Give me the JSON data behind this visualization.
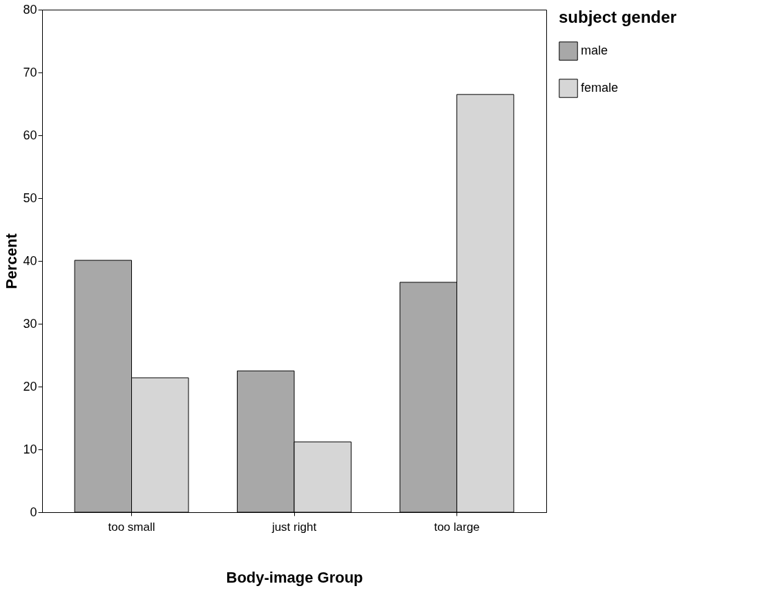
{
  "chart_data": {
    "type": "bar",
    "xlabel": "Body-image Group",
    "ylabel": "Percent",
    "legend_title": "subject gender",
    "categories": [
      "too small",
      "just right",
      "too large"
    ],
    "series": [
      {
        "name": "male",
        "color": "#a8a8a8",
        "values": [
          40.1,
          22.5,
          36.6
        ]
      },
      {
        "name": "female",
        "color": "#d6d6d6",
        "values": [
          21.4,
          11.2,
          66.5
        ]
      }
    ],
    "ylim": [
      0,
      80
    ],
    "yticks": [
      0,
      10,
      20,
      30,
      40,
      50,
      60,
      70,
      80
    ],
    "grid": false,
    "legend": "right"
  }
}
